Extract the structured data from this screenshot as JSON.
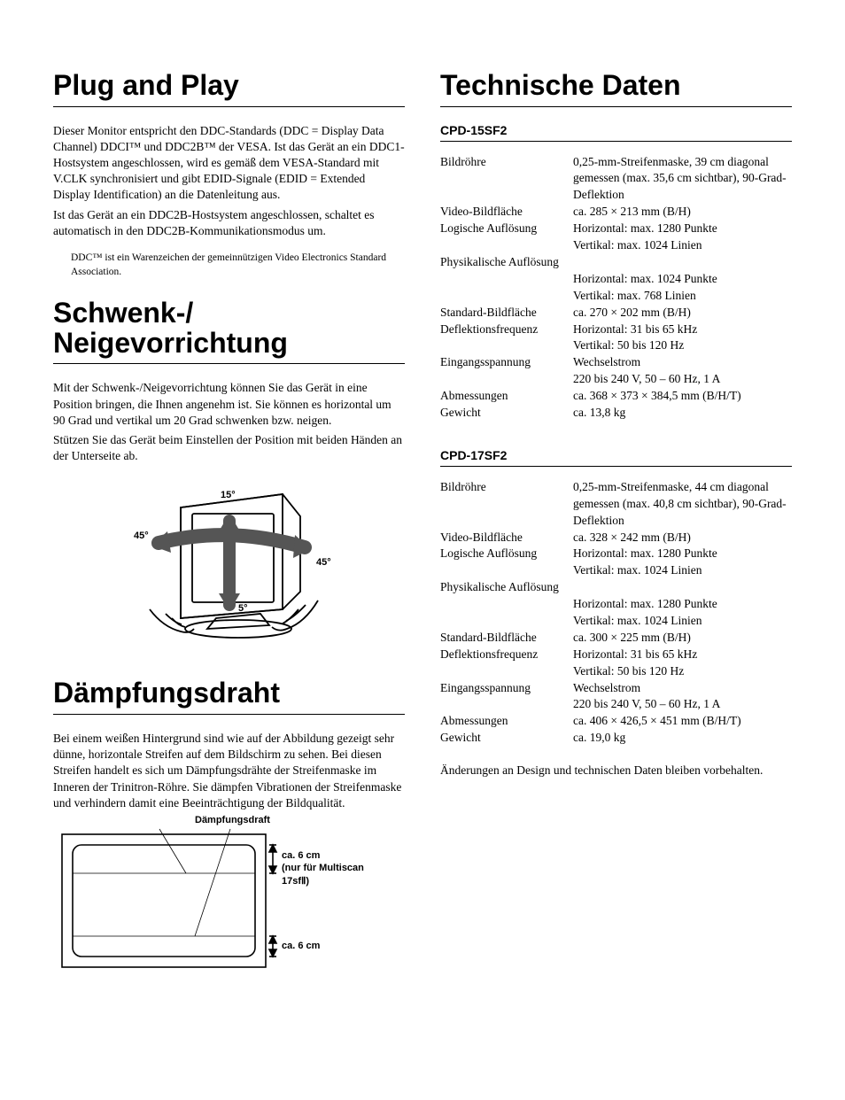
{
  "left": {
    "h_plug": "Plug and Play",
    "plug_p1": "Dieser Monitor entspricht den DDC-Standards (DDC = Display Data Channel) DDCI™ und DDC2B™ der VESA. Ist das Gerät an ein DDC1-Hostsystem angeschlossen, wird es gemäß dem VESA-Standard mit V.CLK synchronisiert und gibt EDID-Signale (EDID = Extended Display Identification) an die Datenleitung aus.",
    "plug_p2": "Ist das Gerät an ein DDC2B-Hostsystem angeschlossen, schaltet es automatisch in den DDC2B-Kommunikationsmodus um.",
    "plug_note": "DDC™ ist ein Warenzeichen der gemeinnützigen Video Electronics Standard Association.",
    "h_schwenk1": "Schwenk-/",
    "h_schwenk2": "Neigevorrichtung",
    "schwenk_p1": "Mit der Schwenk-/Neigevorrichtung können Sie das Gerät in eine Position bringen, die Ihnen angenehm ist. Sie können es horizontal um 90 Grad und vertikal um 20 Grad schwenken bzw. neigen.",
    "schwenk_p2": "Stützen Sie das Gerät beim Einstellen der Position mit beiden Händen an der Unterseite ab.",
    "tilt_labels": {
      "tl": "15°",
      "left": "45°",
      "right": "45°",
      "bottom": "5°"
    },
    "h_daempf": "Dämpfungsdraht",
    "daempf_p": "Bei einem weißen Hintergrund sind wie auf der Abbildung gezeigt sehr dünne, horizontale Streifen auf dem Bildschirm zu sehen. Bei diesen Streifen handelt es sich um Dämpfungsdrähte der Streifenmaske im Inneren der Trinitron-Röhre. Sie dämpfen Vibrationen der Streifenmaske und verhindern damit eine Beeinträchtigung der Bildqualität.",
    "damp_title": "Dämpfungsdraft",
    "damp_side1a": "ca. 6 cm",
    "damp_side1b": "(nur für Multiscan",
    "damp_side1c": "17sfⅡ)",
    "damp_side2": "ca. 6 cm"
  },
  "right": {
    "h_tech": "Technische Daten",
    "model1": "CPD-15SF2",
    "model2": "CPD-17SF2",
    "specs1": [
      {
        "l": "Bildröhre",
        "v": "0,25-mm-Streifenmaske, 39 cm diagonal gemessen (max. 35,6 cm sichtbar), 90-Grad-Deflektion"
      },
      {
        "l": "Video-Bildfläche",
        "v": "ca. 285 × 213 mm (B/H)"
      },
      {
        "l": "Logische Auflösung",
        "v": "Horizontal: max. 1280 Punkte"
      },
      {
        "l": "",
        "v": "Vertikal: max. 1024 Linien"
      },
      {
        "l": "Physikalische Auflösung",
        "v": ""
      },
      {
        "l": "",
        "v": "Horizontal: max. 1024 Punkte"
      },
      {
        "l": "",
        "v": "Vertikal: max. 768 Linien"
      },
      {
        "l": "Standard-Bildfläche",
        "v": "ca. 270 × 202 mm (B/H)"
      },
      {
        "l": "Deflektionsfrequenz",
        "v": "Horizontal: 31 bis 65 kHz"
      },
      {
        "l": "",
        "v": "Vertikal: 50 bis 120 Hz"
      },
      {
        "l": "Eingangsspannung",
        "v": "Wechselstrom"
      },
      {
        "l": "",
        "v": "220 bis 240 V, 50 – 60 Hz, 1 A"
      },
      {
        "l": "Abmessungen",
        "v": "ca. 368 × 373 × 384,5 mm (B/H/T)"
      },
      {
        "l": "Gewicht",
        "v": "ca. 13,8 kg"
      }
    ],
    "specs2": [
      {
        "l": "Bildröhre",
        "v": "0,25-mm-Streifenmaske, 44 cm diagonal gemessen (max. 40,8 cm sichtbar), 90-Grad-Deflektion"
      },
      {
        "l": "Video-Bildfläche",
        "v": "ca. 328 × 242 mm (B/H)"
      },
      {
        "l": "Logische Auflösung",
        "v": "Horizontal: max. 1280 Punkte"
      },
      {
        "l": "",
        "v": "Vertikal: max. 1024 Linien"
      },
      {
        "l": "Physikalische Auflösung",
        "v": ""
      },
      {
        "l": "",
        "v": "Horizontal: max. 1280 Punkte"
      },
      {
        "l": "",
        "v": "Vertikal: max. 1024 Linien"
      },
      {
        "l": "Standard-Bildfläche",
        "v": "ca. 300 × 225 mm (B/H)"
      },
      {
        "l": "Deflektionsfrequenz",
        "v": "Horizontal: 31 bis 65 kHz"
      },
      {
        "l": "",
        "v": "Vertikal: 50 bis 120 Hz"
      },
      {
        "l": "Eingangsspannung",
        "v": "Wechselstrom"
      },
      {
        "l": "",
        "v": "220 bis 240 V, 50 – 60 Hz, 1 A"
      },
      {
        "l": "Abmessungen",
        "v": "ca. 406 × 426,5 × 451 mm (B/H/T)"
      },
      {
        "l": "Gewicht",
        "v": "ca. 19,0 kg"
      }
    ],
    "footer": "Änderungen an Design und technischen Daten bleiben vorbehalten."
  },
  "colors": {
    "text": "#000000",
    "bg": "#ffffff",
    "rule": "#000000"
  }
}
